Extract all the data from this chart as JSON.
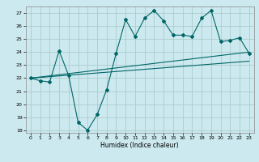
{
  "background_color": "#cce9ef",
  "grid_color": "#aacccc",
  "line_color": "#006666",
  "x_values": [
    0,
    1,
    2,
    3,
    4,
    5,
    6,
    7,
    8,
    9,
    10,
    11,
    12,
    13,
    14,
    15,
    16,
    17,
    18,
    19,
    20,
    21,
    22,
    23
  ],
  "series1": [
    22.0,
    21.8,
    21.7,
    24.1,
    22.2,
    18.6,
    18.0,
    19.2,
    21.1,
    23.9,
    26.5,
    25.2,
    26.6,
    27.2,
    26.4,
    25.3,
    25.3,
    25.2,
    26.6,
    27.2,
    24.8,
    24.9,
    25.1,
    23.9
  ],
  "trend1_x": [
    0,
    23
  ],
  "trend1_y": [
    22.0,
    24.0
  ],
  "trend2_x": [
    0,
    23
  ],
  "trend2_y": [
    22.0,
    23.3
  ],
  "xlabel": "Humidex (Indice chaleur)",
  "ylim_min": 17.8,
  "ylim_max": 27.5,
  "xlim_min": -0.5,
  "xlim_max": 23.5,
  "yticks": [
    18,
    19,
    20,
    21,
    22,
    23,
    24,
    25,
    26,
    27
  ],
  "xticks": [
    0,
    1,
    2,
    3,
    4,
    5,
    6,
    7,
    8,
    9,
    10,
    11,
    12,
    13,
    14,
    15,
    16,
    17,
    18,
    19,
    20,
    21,
    22,
    23
  ]
}
